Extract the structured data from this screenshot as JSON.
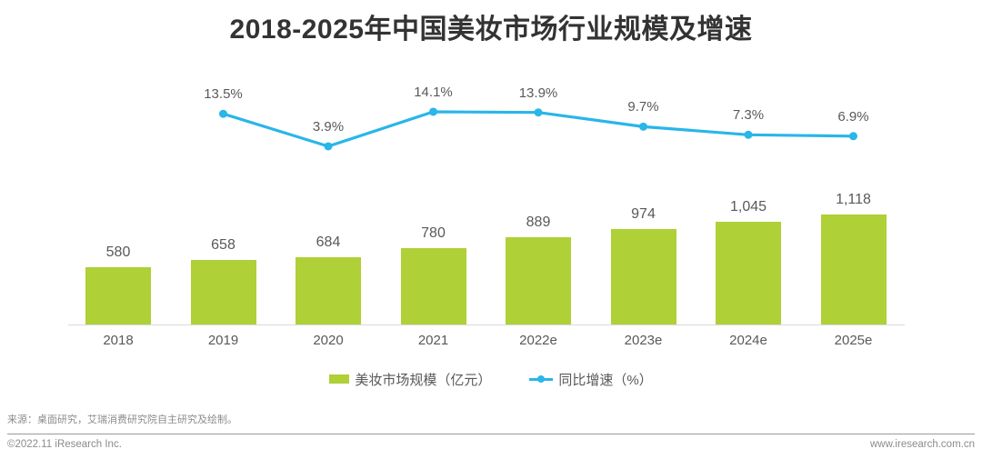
{
  "title": "2018-2025年中国美妆市场行业规模及增速",
  "chart_data": {
    "type": "bar",
    "title": "2018-2025年中国美妆市场行业规模及增速",
    "categories": [
      "2018",
      "2019",
      "2020",
      "2021",
      "2022e",
      "2023e",
      "2024e",
      "2025e"
    ],
    "series": [
      {
        "name": "美妆市场规模（亿元）",
        "type": "bar",
        "values": [
          580,
          658,
          684,
          780,
          889,
          974,
          1045,
          1118
        ],
        "labels": [
          "580",
          "658",
          "684",
          "780",
          "889",
          "974",
          "1,045",
          "1,118"
        ],
        "color": "#AFD036"
      },
      {
        "name": "同比增速（%）",
        "type": "line",
        "values": [
          null,
          13.5,
          3.9,
          14.1,
          13.9,
          9.7,
          7.3,
          6.9
        ],
        "labels": [
          null,
          "13.5%",
          "3.9%",
          "14.1%",
          "13.9%",
          "9.7%",
          "7.3%",
          "6.9%"
        ],
        "color": "#29B6E8"
      }
    ],
    "xlabel": "",
    "ylabel": "",
    "ylim_bar": [
      0,
      1200
    ],
    "ylim_line_pct": [
      0,
      16
    ],
    "grid": false,
    "legend_position": "bottom",
    "data_labels": true
  },
  "legend": {
    "bar_label": "美妆市场规模（亿元）",
    "line_label": "同比增速（%）"
  },
  "footer": {
    "source": "来源：桌面研究，艾瑞消费研究院自主研究及绘制。",
    "copyright": "©2022.11 iResearch Inc.",
    "website": "www.iresearch.com.cn"
  },
  "colors": {
    "bar": "#AFD036",
    "line": "#29B6E8",
    "title": "#333333",
    "label": "#595959",
    "axis": "#D9D9D9",
    "footer": "#8C8C8C"
  }
}
